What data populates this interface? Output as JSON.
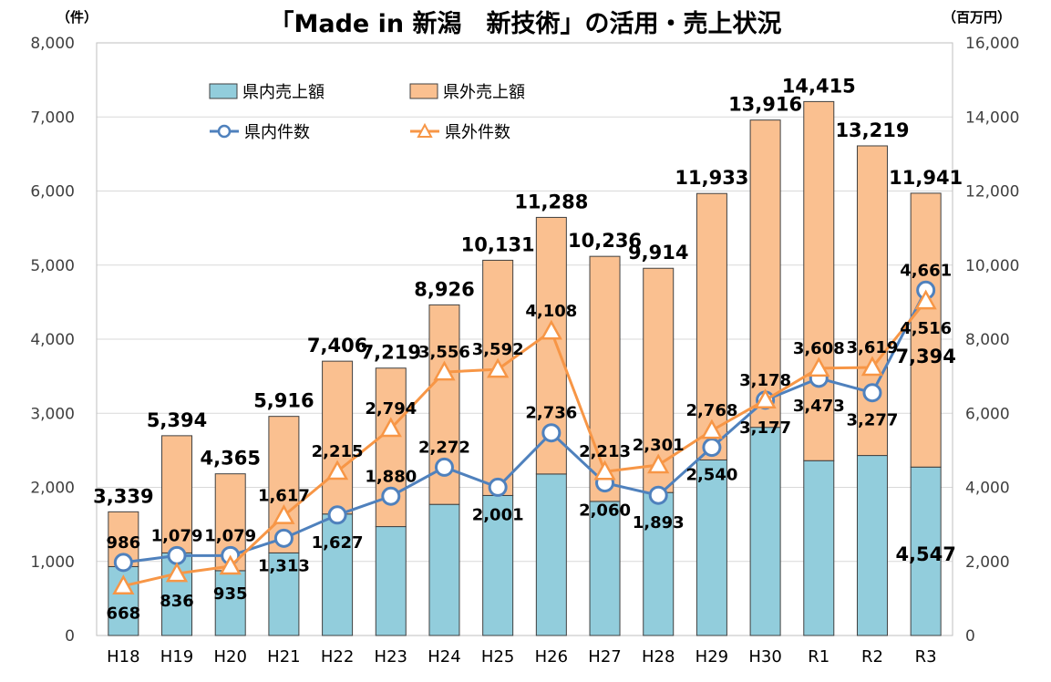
{
  "chart_data": {
    "type": "bar",
    "title": "「Made in 新潟　新技術」の活用・売上状況",
    "left_axis_unit": "（件）",
    "right_axis_unit": "（百万円）",
    "categories": [
      "H18",
      "H19",
      "H20",
      "H21",
      "H22",
      "H23",
      "H24",
      "H25",
      "H26",
      "H27",
      "H28",
      "H29",
      "H30",
      "R1",
      "R2",
      "R3"
    ],
    "left_axis": {
      "range": [
        0,
        8000
      ],
      "ticks": [
        "0",
        "1,000",
        "2,000",
        "3,000",
        "4,000",
        "5,000",
        "6,000",
        "7,000",
        "8,000"
      ]
    },
    "right_axis": {
      "range": [
        0,
        16000
      ],
      "ticks": [
        "0",
        "2,000",
        "4,000",
        "6,000",
        "8,000",
        "10,000",
        "12,000",
        "14,000",
        "16,000"
      ]
    },
    "stacked_bar_series": [
      {
        "name": "県内売上額",
        "axis": "right",
        "color": "#92CDDC",
        "values": [
          1860,
          2230,
          1750,
          2230,
          3280,
          2940,
          3540,
          3780,
          4360,
          3620,
          3860,
          4740,
          5620,
          4720,
          4860,
          4547
        ],
        "labels": [
          "",
          "",
          "",
          "",
          "",
          "",
          "",
          "",
          "",
          "",
          "",
          "",
          "",
          "",
          "",
          "4,547"
        ]
      },
      {
        "name": "県外売上額",
        "axis": "right",
        "color": "#FAC090",
        "values": [
          1479,
          3164,
          2615,
          3686,
          4126,
          4279,
          5386,
          6351,
          6928,
          6616,
          6054,
          7193,
          8296,
          9695,
          8359,
          7394
        ],
        "labels": [
          "",
          "",
          "",
          "",
          "",
          "",
          "",
          "",
          "",
          "",
          "",
          "",
          "",
          "",
          "",
          "7,394"
        ]
      }
    ],
    "bar_totals": [
      3339,
      5394,
      4365,
      5916,
      7406,
      7219,
      8926,
      10131,
      11288,
      10236,
      9914,
      11933,
      13916,
      14415,
      13219,
      11941
    ],
    "bar_total_labels": [
      "3,339",
      "5,394",
      "4,365",
      "5,916",
      "7,406",
      "7,219",
      "8,926",
      "10,131",
      "11,288",
      "10,236",
      "9,914",
      "11,933",
      "13,916",
      "14,415",
      "13,219",
      "11,941"
    ],
    "line_series": [
      {
        "name": "県内件数",
        "axis": "left",
        "color": "#4F81BD",
        "marker": "circle",
        "values": [
          986,
          1079,
          1079,
          1313,
          1627,
          1880,
          2272,
          2001,
          2736,
          2060,
          1893,
          2540,
          3177,
          3473,
          3277,
          4661
        ],
        "labels": [
          "986",
          "1,079",
          "1,079",
          "1,313",
          "1,627",
          "1,880",
          "2,272",
          "2,001",
          "2,736",
          "2,060",
          "1,893",
          "2,540",
          "3,177",
          "3,473",
          "3,277",
          "4,661"
        ],
        "label_pos": [
          "above",
          "above",
          "above",
          "below",
          "below",
          "above",
          "above",
          "below",
          "above",
          "below",
          "below",
          "below",
          "below",
          "below",
          "below",
          "above"
        ]
      },
      {
        "name": "県外件数",
        "axis": "left",
        "color": "#F79646",
        "marker": "triangle",
        "values": [
          668,
          836,
          935,
          1617,
          2215,
          2794,
          3556,
          3592,
          4108,
          2213,
          2301,
          2768,
          3178,
          3608,
          3619,
          4516
        ],
        "labels": [
          "668",
          "836",
          "935",
          "1,617",
          "2,215",
          "2,794",
          "3,556",
          "3,592",
          "4,108",
          "2,213",
          "2,301",
          "2,768",
          "3,178",
          "3,608",
          "3,619",
          "4,516"
        ],
        "label_pos": [
          "below",
          "below",
          "below",
          "above",
          "above",
          "above",
          "above",
          "above",
          "above",
          "above",
          "above",
          "above",
          "above",
          "above",
          "above",
          "below"
        ]
      }
    ],
    "legend_placement": "top-left inside plot",
    "gridlines": true
  }
}
